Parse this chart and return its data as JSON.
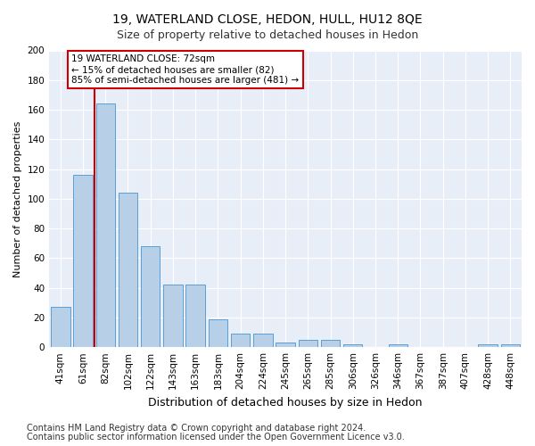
{
  "title": "19, WATERLAND CLOSE, HEDON, HULL, HU12 8QE",
  "subtitle": "Size of property relative to detached houses in Hedon",
  "xlabel": "Distribution of detached houses by size in Hedon",
  "ylabel": "Number of detached properties",
  "categories": [
    "41sqm",
    "61sqm",
    "82sqm",
    "102sqm",
    "122sqm",
    "143sqm",
    "163sqm",
    "183sqm",
    "204sqm",
    "224sqm",
    "245sqm",
    "265sqm",
    "285sqm",
    "306sqm",
    "326sqm",
    "346sqm",
    "367sqm",
    "387sqm",
    "407sqm",
    "428sqm",
    "448sqm"
  ],
  "values": [
    27,
    116,
    164,
    104,
    68,
    42,
    42,
    19,
    9,
    9,
    3,
    5,
    5,
    2,
    0,
    2,
    0,
    0,
    0,
    2,
    2
  ],
  "bar_color": "#b8cfe8",
  "bar_edge_color": "#5a9fd4",
  "vline_x": 1.5,
  "vline_color": "#cc0000",
  "annotation_text": "19 WATERLAND CLOSE: 72sqm\n← 15% of detached houses are smaller (82)\n85% of semi-detached houses are larger (481) →",
  "annotation_box_color": "#ffffff",
  "annotation_box_edge_color": "#cc0000",
  "ylim": [
    0,
    200
  ],
  "yticks": [
    0,
    20,
    40,
    60,
    80,
    100,
    120,
    140,
    160,
    180,
    200
  ],
  "footer1": "Contains HM Land Registry data © Crown copyright and database right 2024.",
  "footer2": "Contains public sector information licensed under the Open Government Licence v3.0.",
  "bg_color": "#e8eef8",
  "grid_color": "#ffffff",
  "fig_bg_color": "#ffffff",
  "title_fontsize": 10,
  "subtitle_fontsize": 9,
  "xlabel_fontsize": 9,
  "ylabel_fontsize": 8,
  "tick_fontsize": 7.5,
  "footer_fontsize": 7,
  "annotation_fontsize": 7.5
}
